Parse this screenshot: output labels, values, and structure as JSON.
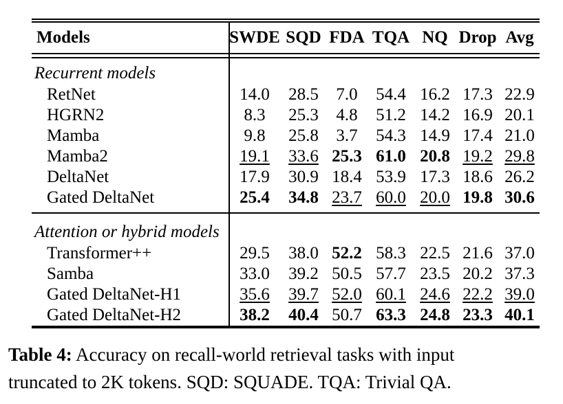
{
  "table": {
    "columns": [
      "Models",
      "SWDE",
      "SQD",
      "FDA",
      "TQA",
      "NQ",
      "Drop",
      "Avg"
    ],
    "sections": [
      {
        "label": "Recurrent models",
        "rows": [
          {
            "model": "RetNet",
            "values": [
              {
                "v": "14.0",
                "s": "p"
              },
              {
                "v": "28.5",
                "s": "p"
              },
              {
                "v": "7.0",
                "s": "p"
              },
              {
                "v": "54.4",
                "s": "p"
              },
              {
                "v": "16.2",
                "s": "p"
              },
              {
                "v": "17.3",
                "s": "p"
              },
              {
                "v": "22.9",
                "s": "p"
              }
            ]
          },
          {
            "model": "HGRN2",
            "values": [
              {
                "v": "8.3",
                "s": "p"
              },
              {
                "v": "25.3",
                "s": "p"
              },
              {
                "v": "4.8",
                "s": "p"
              },
              {
                "v": "51.2",
                "s": "p"
              },
              {
                "v": "14.2",
                "s": "p"
              },
              {
                "v": "16.9",
                "s": "p"
              },
              {
                "v": "20.1",
                "s": "p"
              }
            ]
          },
          {
            "model": "Mamba",
            "values": [
              {
                "v": "9.8",
                "s": "p"
              },
              {
                "v": "25.8",
                "s": "p"
              },
              {
                "v": "3.7",
                "s": "p"
              },
              {
                "v": "54.3",
                "s": "p"
              },
              {
                "v": "14.9",
                "s": "p"
              },
              {
                "v": "17.4",
                "s": "p"
              },
              {
                "v": "21.0",
                "s": "p"
              }
            ]
          },
          {
            "model": "Mamba2",
            "values": [
              {
                "v": "19.1",
                "s": "u"
              },
              {
                "v": "33.6",
                "s": "u"
              },
              {
                "v": "25.3",
                "s": "b"
              },
              {
                "v": "61.0",
                "s": "b"
              },
              {
                "v": "20.8",
                "s": "b"
              },
              {
                "v": "19.2",
                "s": "u"
              },
              {
                "v": "29.8",
                "s": "u"
              }
            ]
          },
          {
            "model": "DeltaNet",
            "values": [
              {
                "v": "17.9",
                "s": "p"
              },
              {
                "v": "30.9",
                "s": "p"
              },
              {
                "v": "18.4",
                "s": "p"
              },
              {
                "v": "53.9",
                "s": "p"
              },
              {
                "v": "17.3",
                "s": "p"
              },
              {
                "v": "18.6",
                "s": "p"
              },
              {
                "v": "26.2",
                "s": "p"
              }
            ]
          },
          {
            "model": "Gated DeltaNet",
            "values": [
              {
                "v": "25.4",
                "s": "b"
              },
              {
                "v": "34.8",
                "s": "b"
              },
              {
                "v": "23.7",
                "s": "u"
              },
              {
                "v": "60.0",
                "s": "u"
              },
              {
                "v": "20.0",
                "s": "u"
              },
              {
                "v": "19.8",
                "s": "b"
              },
              {
                "v": "30.6",
                "s": "b"
              }
            ]
          }
        ]
      },
      {
        "label": "Attention or hybrid models",
        "rows": [
          {
            "model": "Transformer++",
            "values": [
              {
                "v": "29.5",
                "s": "p"
              },
              {
                "v": "38.0",
                "s": "p"
              },
              {
                "v": "52.2",
                "s": "b"
              },
              {
                "v": "58.3",
                "s": "p"
              },
              {
                "v": "22.5",
                "s": "p"
              },
              {
                "v": "21.6",
                "s": "p"
              },
              {
                "v": "37.0",
                "s": "p"
              }
            ]
          },
          {
            "model": "Samba",
            "values": [
              {
                "v": "33.0",
                "s": "p"
              },
              {
                "v": "39.2",
                "s": "p"
              },
              {
                "v": "50.5",
                "s": "p"
              },
              {
                "v": "57.7",
                "s": "p"
              },
              {
                "v": "23.5",
                "s": "p"
              },
              {
                "v": "20.2",
                "s": "p"
              },
              {
                "v": "37.3",
                "s": "p"
              }
            ]
          },
          {
            "model": "Gated DeltaNet-H1",
            "values": [
              {
                "v": "35.6",
                "s": "u"
              },
              {
                "v": "39.7",
                "s": "u"
              },
              {
                "v": "52.0",
                "s": "u"
              },
              {
                "v": "60.1",
                "s": "u"
              },
              {
                "v": "24.6",
                "s": "u"
              },
              {
                "v": "22.2",
                "s": "u"
              },
              {
                "v": "39.0",
                "s": "u"
              }
            ]
          },
          {
            "model": "Gated DeltaNet-H2",
            "values": [
              {
                "v": "38.2",
                "s": "b"
              },
              {
                "v": "40.4",
                "s": "b"
              },
              {
                "v": "50.7",
                "s": "p"
              },
              {
                "v": "63.3",
                "s": "b"
              },
              {
                "v": "24.8",
                "s": "b"
              },
              {
                "v": "23.3",
                "s": "b"
              },
              {
                "v": "40.1",
                "s": "b"
              }
            ]
          }
        ]
      }
    ],
    "style_legend": {
      "b": "bold = best in section",
      "u": "underline = second best in section",
      "p": "plain"
    }
  },
  "caption": {
    "label": "Table 4:",
    "line1": "Accuracy on recall-world retrieval tasks with input",
    "line2": "truncated to 2K tokens. SQD: SQUADE. TQA: Trivial QA."
  }
}
